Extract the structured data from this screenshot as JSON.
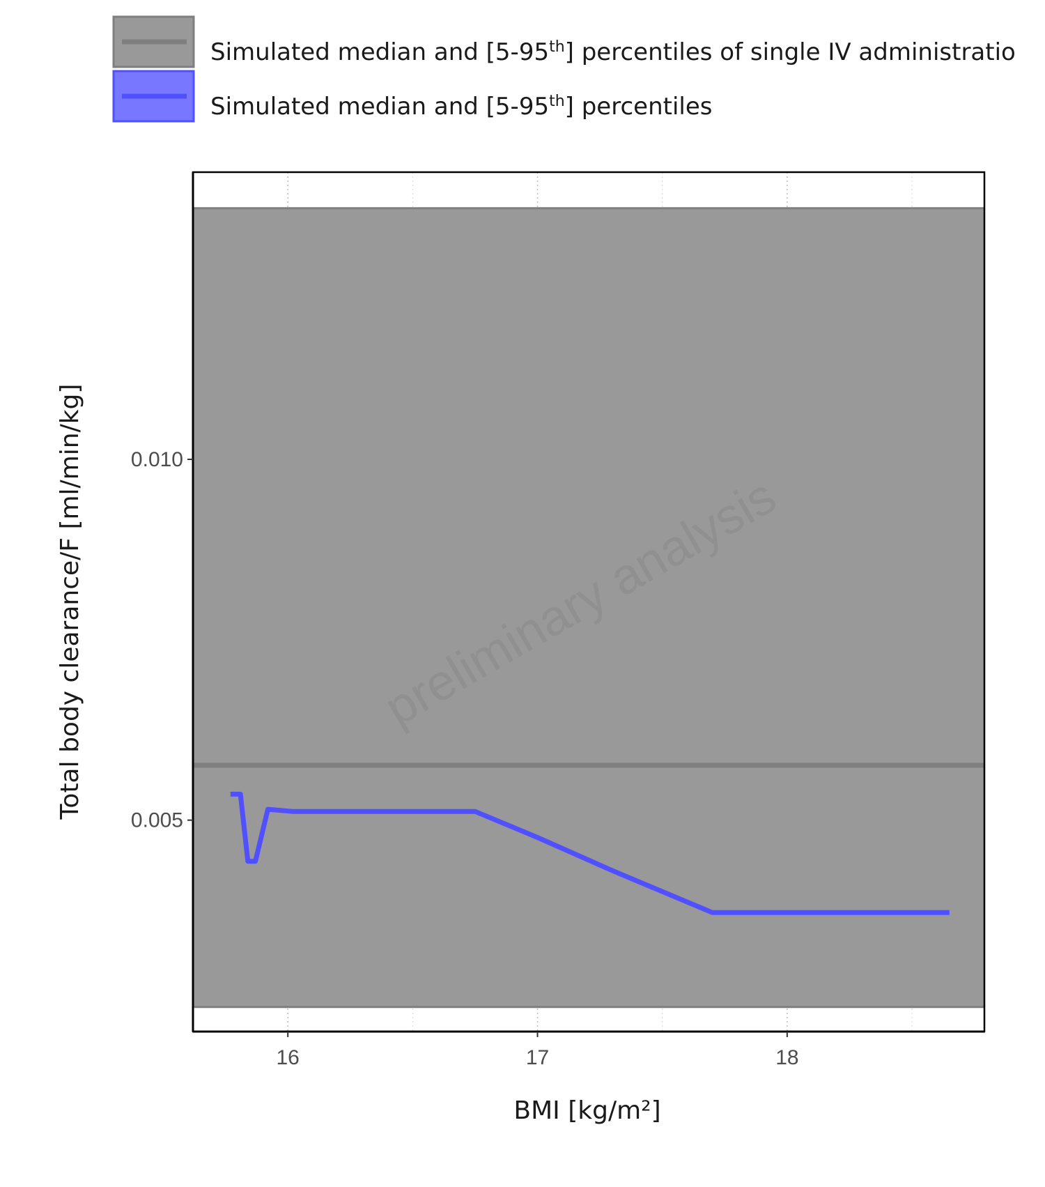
{
  "chart_data": {
    "type": "line",
    "xlabel": "BMI [kg/m²]",
    "ylabel": "Total body clearance/F [ml/min/kg]",
    "xlim": [
      15.62,
      18.79
    ],
    "ylim": [
      0.00207,
      0.01398
    ],
    "x_ticks": [
      16,
      17,
      18
    ],
    "y_ticks": [
      0.005,
      0.01
    ],
    "x_tick_labels": [
      "16",
      "17",
      "18"
    ],
    "y_tick_labels": [
      "0.005",
      "0.010"
    ],
    "grid": true,
    "legend_position": "top",
    "watermark": "preliminary analysis",
    "legend": [
      {
        "name_parts": [
          "Simulated median and [5-95",
          "th",
          "] percentiles of single IV administratio"
        ],
        "color": "#7f7f7f",
        "fill": "#999999"
      },
      {
        "name_parts": [
          "Simulated median and [5-95",
          "th",
          "] percentiles"
        ],
        "color": "#5050ff",
        "fill": "#7777ff"
      }
    ],
    "series": [
      {
        "kind": "reference_band",
        "median": 0.00576,
        "lower": 0.00241,
        "upper": 0.01348,
        "line_color": "#7f7f7f",
        "fill_color": "#999999"
      },
      {
        "kind": "simulated",
        "x": [
          15.77,
          15.81,
          15.84,
          15.87,
          15.92,
          16.02,
          16.15,
          16.5,
          16.75,
          17.0,
          17.3,
          17.7,
          18.0,
          18.3,
          18.65
        ],
        "y": [
          0.00536,
          0.00536,
          0.00443,
          0.00443,
          0.00515,
          0.00512,
          0.00512,
          0.00512,
          0.00512,
          0.00476,
          0.0043,
          0.00372,
          0.00372,
          0.00372,
          0.00372
        ],
        "line_color": "#5050ff"
      }
    ]
  }
}
